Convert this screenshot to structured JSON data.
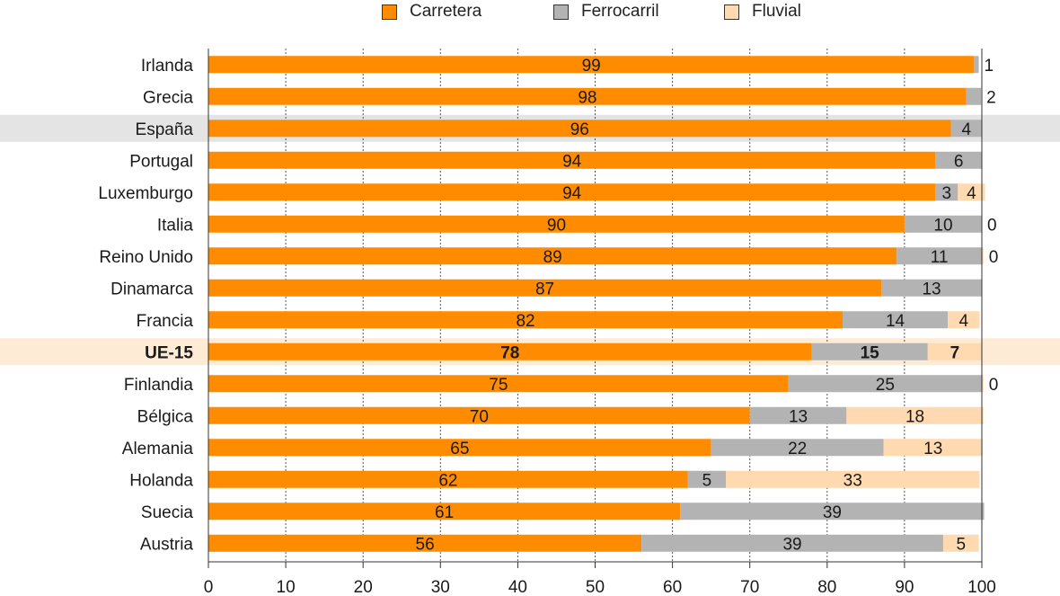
{
  "legend": {
    "carretera": "Carretera",
    "ferrocarril": "Ferrocarril",
    "fluvial": "Fluvial"
  },
  "colors": {
    "carretera": "#ff8c00",
    "ferrocarril": "#b3b3b3",
    "fluvial": "#ffd9b0",
    "highlight_spain": "#e4e4e4",
    "highlight_eu": "#fdebd6"
  },
  "chart_data": {
    "type": "bar",
    "orientation": "horizontal",
    "stacked": true,
    "xlim": [
      0,
      100
    ],
    "x_ticks": [
      "0",
      "10",
      "20",
      "30",
      "40",
      "50",
      "60",
      "70",
      "80",
      "90",
      "100"
    ],
    "grid": "vertical dotted",
    "legend_position": "top-center",
    "categories": [
      "Irlanda",
      "Grecia",
      "España",
      "Portugal",
      "Luxemburgo",
      "Italia",
      "Reino Unido",
      "Dinamarca",
      "Francia",
      "UE-15",
      "Finlandia",
      "Bélgica",
      "Alemania",
      "Holanda",
      "Suecia",
      "Austria"
    ],
    "highlighted": {
      "España": "highlight_spain",
      "UE-15": "highlight_eu"
    },
    "bold_categories": [
      "UE-15"
    ],
    "series": [
      {
        "name": "Carretera",
        "color_key": "carretera",
        "values": [
          99,
          98,
          96,
          94,
          94,
          90,
          89,
          87,
          82,
          78,
          75,
          70,
          65,
          62,
          61,
          56
        ],
        "labels": [
          "99",
          "98",
          "96",
          "94",
          "94",
          "90",
          "89",
          "87",
          "82",
          "78",
          "75",
          "70",
          "65",
          "62",
          "61",
          "56"
        ]
      },
      {
        "name": "Ferrocarril",
        "color_key": "ferrocarril",
        "values": [
          0.6,
          1.9,
          4.0,
          6.0,
          2.9,
          10.0,
          11.0,
          13.0,
          13.6,
          15.0,
          25.0,
          12.5,
          22.3,
          4.9,
          39.3,
          39.0
        ],
        "labels": [
          "",
          "",
          "4",
          "6",
          "3",
          "10",
          "11",
          "13",
          "14",
          "15",
          "25",
          "13",
          "22",
          "5",
          "39",
          "39"
        ]
      },
      {
        "name": "Fluvial",
        "color_key": "fluvial",
        "values": [
          0,
          0,
          0,
          0,
          3.5,
          0,
          0.2,
          0,
          4.1,
          7.0,
          0.2,
          17.7,
          12.8,
          32.8,
          0,
          4.6
        ],
        "labels": [
          "",
          "",
          "",
          "",
          "4",
          "",
          "",
          "",
          "4",
          "7",
          "",
          "18",
          "13",
          "33",
          "",
          "5"
        ]
      }
    ],
    "outside_labels": [
      "1",
      "2",
      "",
      "",
      "",
      "0",
      "0",
      "",
      "",
      "",
      "0",
      "",
      "",
      "",
      "",
      ""
    ]
  }
}
